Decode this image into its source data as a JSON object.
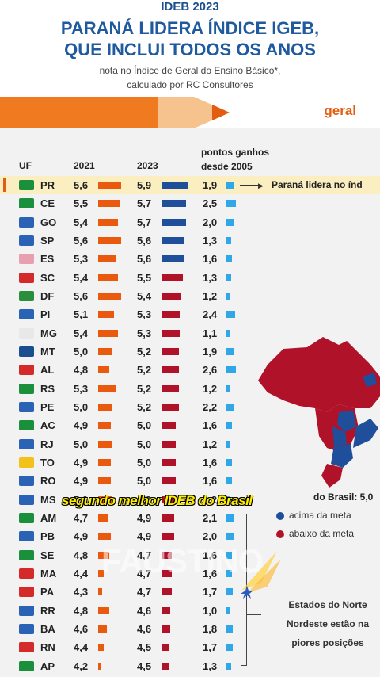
{
  "header": {
    "top_label": "IDEB 2023",
    "headline_line1": "PARANÁ LIDERA ÍNDICE IGEB,",
    "headline_line2": "QUE INCLUI TODOS OS ANOS",
    "subtitle_line1": "nota no Índice de Geral do Ensino Básico*,",
    "subtitle_line2": "calculado por RC Consultores",
    "tab_label": "geral"
  },
  "table": {
    "col_uf": "UF",
    "col_2021": "2021",
    "col_2023": "2023",
    "col_pts_line1": "pontos ganhos",
    "col_pts_line2": "desde 2005"
  },
  "colors": {
    "above_meta": "#1f4e9a",
    "below_meta": "#b0122a",
    "bar_2021": "#ea5a0e",
    "bar_pts": "#2fa7e8",
    "accent": "#e25d10"
  },
  "chart_data": {
    "type": "table",
    "categories": [
      "PR",
      "CE",
      "GO",
      "SP",
      "ES",
      "SC",
      "DF",
      "PI",
      "MG",
      "MT",
      "AL",
      "RS",
      "PE",
      "AC",
      "RJ",
      "TO",
      "RO",
      "MS",
      "AM",
      "PB",
      "SE",
      "MA",
      "PA",
      "RR",
      "BA",
      "RN",
      "AP"
    ],
    "series": [
      {
        "name": "2021",
        "values": [
          5.6,
          5.5,
          5.4,
          5.6,
          5.3,
          5.4,
          5.6,
          5.1,
          5.4,
          5.0,
          4.8,
          5.3,
          5.0,
          4.9,
          5.0,
          4.9,
          4.9,
          5.0,
          4.7,
          4.9,
          4.8,
          4.4,
          4.3,
          4.8,
          4.6,
          4.4,
          4.2
        ]
      },
      {
        "name": "2023",
        "values": [
          5.9,
          5.7,
          5.7,
          5.6,
          5.6,
          5.5,
          5.4,
          5.3,
          5.3,
          5.2,
          5.2,
          5.2,
          5.2,
          5.0,
          5.0,
          5.0,
          5.0,
          4.9,
          4.9,
          4.9,
          4.7,
          4.7,
          4.7,
          4.6,
          4.6,
          4.5,
          4.5
        ]
      },
      {
        "name": "pontos ganhos desde 2005",
        "values": [
          1.9,
          2.5,
          2.0,
          1.3,
          1.6,
          1.3,
          1.2,
          2.4,
          1.1,
          1.9,
          2.6,
          1.2,
          2.2,
          1.6,
          1.2,
          1.6,
          1.6,
          1.2,
          2.1,
          2.0,
          1.6,
          1.6,
          1.7,
          1.0,
          1.8,
          1.7,
          1.3
        ]
      }
    ],
    "meta_status_2023": [
      "above",
      "above",
      "above",
      "above",
      "above",
      "below",
      "below",
      "below",
      "below",
      "below",
      "below",
      "below",
      "below",
      "below",
      "below",
      "below",
      "below",
      "below",
      "below",
      "below",
      "below",
      "below",
      "below",
      "below",
      "below",
      "below",
      "below"
    ]
  },
  "rows_text": [
    {
      "uf": "PR",
      "v21": "5,6",
      "v23": "5,9",
      "pts": "1,9"
    },
    {
      "uf": "CE",
      "v21": "5,5",
      "v23": "5,7",
      "pts": "2,5"
    },
    {
      "uf": "GO",
      "v21": "5,4",
      "v23": "5,7",
      "pts": "2,0"
    },
    {
      "uf": "SP",
      "v21": "5,6",
      "v23": "5,6",
      "pts": "1,3"
    },
    {
      "uf": "ES",
      "v21": "5,3",
      "v23": "5,6",
      "pts": "1,6"
    },
    {
      "uf": "SC",
      "v21": "5,4",
      "v23": "5,5",
      "pts": "1,3"
    },
    {
      "uf": "DF",
      "v21": "5,6",
      "v23": "5,4",
      "pts": "1,2"
    },
    {
      "uf": "PI",
      "v21": "5,1",
      "v23": "5,3",
      "pts": "2,4"
    },
    {
      "uf": "MG",
      "v21": "5,4",
      "v23": "5,3",
      "pts": "1,1"
    },
    {
      "uf": "MT",
      "v21": "5,0",
      "v23": "5,2",
      "pts": "1,9"
    },
    {
      "uf": "AL",
      "v21": "4,8",
      "v23": "5,2",
      "pts": "2,6"
    },
    {
      "uf": "RS",
      "v21": "5,3",
      "v23": "5,2",
      "pts": "1,2"
    },
    {
      "uf": "PE",
      "v21": "5,0",
      "v23": "5,2",
      "pts": "2,2"
    },
    {
      "uf": "AC",
      "v21": "4,9",
      "v23": "5,0",
      "pts": "1,6"
    },
    {
      "uf": "RJ",
      "v21": "5,0",
      "v23": "5,0",
      "pts": "1,2"
    },
    {
      "uf": "TO",
      "v21": "4,9",
      "v23": "5,0",
      "pts": "1,6"
    },
    {
      "uf": "RO",
      "v21": "4,9",
      "v23": "5,0",
      "pts": "1,6"
    },
    {
      "uf": "MS",
      "v21": "5,0",
      "v23": "4,9",
      "pts": "1,2"
    },
    {
      "uf": "AM",
      "v21": "4,7",
      "v23": "4,9",
      "pts": "2,1"
    },
    {
      "uf": "PB",
      "v21": "4,9",
      "v23": "4,9",
      "pts": "2,0"
    },
    {
      "uf": "SE",
      "v21": "4,8",
      "v23": "4,7",
      "pts": "1,6"
    },
    {
      "uf": "MA",
      "v21": "4,4",
      "v23": "4,7",
      "pts": "1,6"
    },
    {
      "uf": "PA",
      "v21": "4,3",
      "v23": "4,7",
      "pts": "1,7"
    },
    {
      "uf": "RR",
      "v21": "4,8",
      "v23": "4,6",
      "pts": "1,0"
    },
    {
      "uf": "BA",
      "v21": "4,6",
      "v23": "4,6",
      "pts": "1,8"
    },
    {
      "uf": "RN",
      "v21": "4,4",
      "v23": "4,5",
      "pts": "1,7"
    },
    {
      "uf": "AP",
      "v21": "4,2",
      "v23": "4,5",
      "pts": "1,3"
    }
  ],
  "annotations": {
    "callout_pr": "Paraná lidera no índ",
    "brazil_average": "do Brasil: 5,0",
    "legend_above": "acima da meta",
    "legend_below": "abaixo da meta",
    "note_line1": "Estados do Norte",
    "note_line2": "Nordeste estão na",
    "note_line3": "piores posições"
  },
  "overlay": {
    "caption": "segundo melhor IDEB do Brasil",
    "watermark": "FAUSTINO"
  }
}
